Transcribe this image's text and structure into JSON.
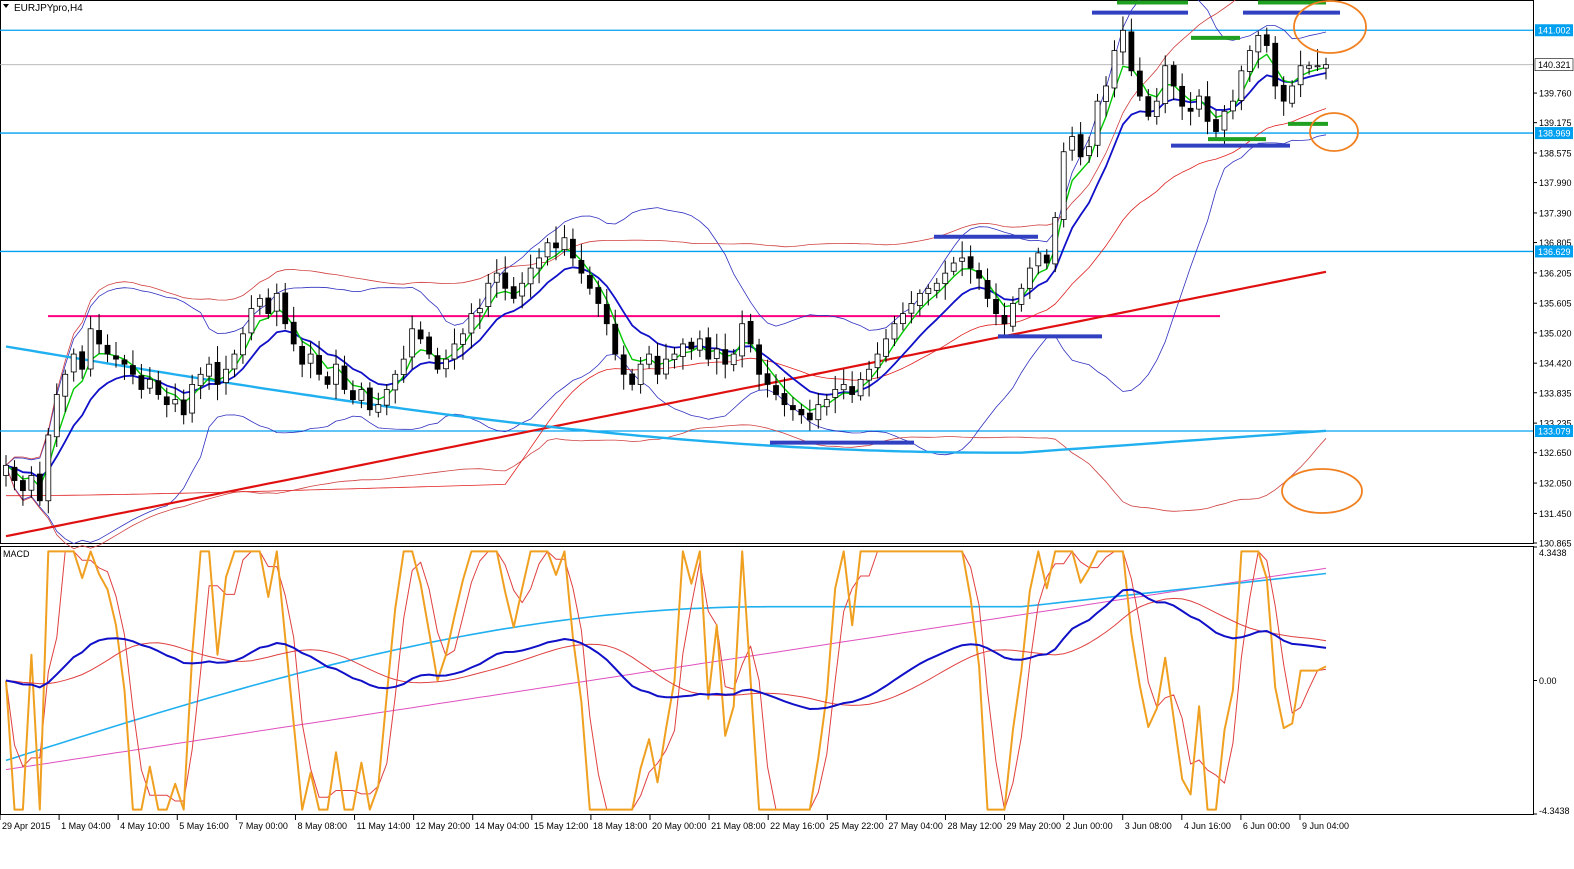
{
  "window": {
    "title": "EURJPYpro,H4",
    "indicator_label": "MACD"
  },
  "colors": {
    "background": "#ffffff",
    "frame": "#000000",
    "level_line": "#00a0f0",
    "price_marker_bg": "#00a0f0",
    "current_marker_bg": "#ffffff",
    "bull_candle": "#ffffff",
    "bear_candle": "#000000",
    "ma_fast": "#00c800",
    "ma_mid": "#1010c8",
    "ma_slow_thin": "#e02020",
    "ma_long": "#e01010",
    "ma_very_long": "#20b0f0",
    "bollinger": "#3030c0",
    "envelope": "#d04040",
    "support_resistance": "#ff0080",
    "marker_blue": "#3040c0",
    "marker_green": "#20a020",
    "annotation_circle": "#f08020",
    "macd_main": "#1010c8",
    "macd_signal": "#e04040",
    "stoch_main": "#f0a020",
    "stoch_signal": "#e04040",
    "macd_long": "#20b0f0",
    "macd_long2": "#e050c0"
  },
  "chart_data": [
    {
      "type": "candlestick",
      "title": "EURJPYpro,H4",
      "ylim": [
        130.865,
        141.6
      ],
      "price_scale_labels": [
        "141.002",
        "140.321",
        "139.760",
        "139.175",
        "138.969",
        "138.575",
        "137.990",
        "137.390",
        "136.805",
        "136.629",
        "136.205",
        "135.605",
        "135.020",
        "134.420",
        "133.835",
        "133.235",
        "133.079",
        "132.650",
        "132.050",
        "131.450",
        "130.865"
      ],
      "highlighted_levels": [
        {
          "value": 141.002,
          "label": "141.002"
        },
        {
          "value": 138.969,
          "label": "138.969"
        },
        {
          "value": 136.629,
          "label": "136.629"
        },
        {
          "value": 133.079,
          "label": "133.079"
        }
      ],
      "current_price": {
        "value": 140.321,
        "label": "140.321"
      },
      "x_tick_labels": [
        "29 Apr 2015",
        "1 May 04:00",
        "4 May 10:00",
        "5 May 16:00",
        "7 May 00:00",
        "8 May 08:00",
        "11 May 14:00",
        "12 May 20:00",
        "14 May 04:00",
        "15 May 12:00",
        "18 May 18:00",
        "20 May 00:00",
        "21 May 08:00",
        "22 May 16:00",
        "25 May 22:00",
        "27 May 04:00",
        "28 May 12:00",
        "29 May 20:00",
        "2 Jun 00:00",
        "3 Jun 08:00",
        "4 Jun 16:00",
        "6 Jun 00:00",
        "9 Jun 04:00"
      ],
      "support_line": {
        "value": 135.35
      },
      "closes": [
        132.4,
        132.1,
        131.9,
        132.2,
        131.7,
        133.0,
        133.8,
        134.2,
        134.6,
        134.3,
        135.1,
        134.8,
        134.6,
        134.5,
        134.4,
        134.2,
        133.9,
        134.1,
        133.8,
        133.6,
        133.7,
        133.4,
        134.0,
        134.2,
        134.4,
        134.0,
        134.3,
        134.6,
        135.0,
        135.5,
        135.7,
        135.4,
        135.8,
        135.2,
        134.8,
        134.4,
        134.6,
        134.2,
        134.0,
        134.4,
        133.9,
        133.7,
        133.9,
        133.5,
        133.6,
        133.9,
        134.2,
        134.5,
        135.1,
        134.9,
        134.6,
        134.3,
        134.5,
        134.8,
        135.0,
        135.4,
        135.5,
        136.0,
        136.2,
        135.9,
        135.7,
        136.0,
        136.3,
        136.5,
        136.8,
        136.7,
        136.9,
        136.5,
        136.2,
        135.9,
        135.6,
        135.2,
        134.6,
        134.2,
        134.0,
        134.4,
        134.6,
        134.2,
        134.5,
        134.6,
        134.8,
        134.7,
        134.9,
        134.5,
        134.7,
        134.4,
        134.6,
        135.2,
        134.8,
        134.2,
        134.0,
        133.8,
        133.6,
        133.5,
        133.4,
        133.3,
        133.6,
        133.7,
        133.9,
        134.0,
        133.8,
        134.1,
        134.3,
        134.6,
        134.9,
        135.2,
        135.4,
        135.6,
        135.8,
        135.9,
        136.0,
        136.2,
        136.4,
        136.5,
        136.3,
        136.1,
        135.7,
        135.4,
        135.2,
        135.6,
        135.9,
        136.3,
        136.6,
        136.4,
        137.3,
        138.6,
        138.9,
        138.5,
        138.7,
        139.6,
        139.9,
        140.6,
        141.0,
        140.2,
        139.7,
        139.3,
        139.6,
        140.3,
        139.9,
        139.5,
        139.4,
        139.7,
        139.2,
        139.0,
        139.4,
        139.6,
        140.2,
        140.6,
        140.9,
        140.7,
        139.9,
        139.6,
        139.9,
        140.3,
        140.3,
        140.3,
        140.321
      ]
    },
    {
      "type": "line",
      "title": "MACD",
      "ylim": [
        -4.3438,
        4.3438
      ],
      "scale_labels": [
        "4.3438",
        "0.00",
        "-4.3438"
      ]
    }
  ]
}
